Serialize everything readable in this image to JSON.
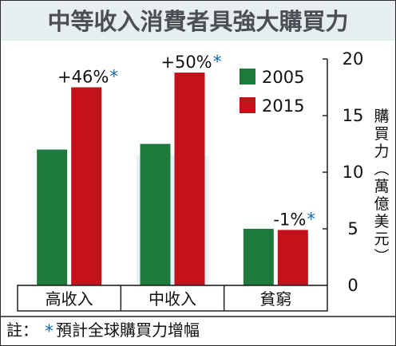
{
  "chart_data": {
    "type": "bar",
    "title": "中等收入消費者具強大購買力",
    "categories": [
      "高收入",
      "中收入",
      "貧窮"
    ],
    "series": [
      {
        "name": "2005",
        "values": [
          12.0,
          12.5,
          5.0
        ],
        "color": "#1e7a3c"
      },
      {
        "name": "2015",
        "values": [
          17.5,
          18.8,
          4.9
        ],
        "color": "#c4121a"
      }
    ],
    "annotations": [
      {
        "category": "高收入",
        "text": "+46%",
        "mark": "*"
      },
      {
        "category": "中收入",
        "text": "+50%",
        "mark": "*"
      },
      {
        "category": "貧窮",
        "text": "-1%",
        "mark": "*"
      }
    ],
    "ylabel_chars": [
      "購",
      "買",
      "力",
      "︵",
      "萬",
      "億",
      "美",
      "元",
      "︶"
    ],
    "ylim": [
      0,
      20
    ],
    "yticks": [
      0,
      5,
      10,
      15,
      20
    ],
    "y_axis_position": "right",
    "legend_position": "top-right",
    "highlight_category": "中收入",
    "grid": false,
    "note": {
      "label": "註：",
      "mark": "*",
      "text": "預計全球購買力增幅"
    }
  },
  "colors": {
    "title_bg": "#e6eef2",
    "title_text": "#4a4f55",
    "highlight_band": "#e8f0f7",
    "asterisk": "#1b6bb3",
    "axis": "#222222"
  }
}
